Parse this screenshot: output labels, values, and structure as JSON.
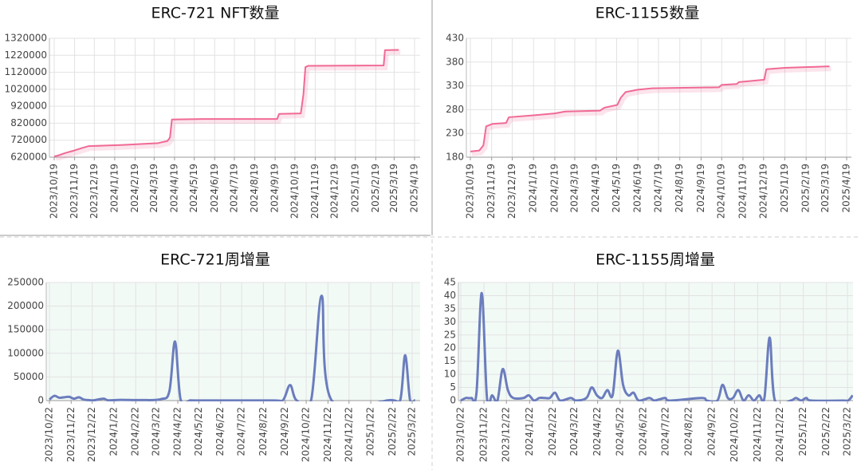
{
  "chart_data": [
    {
      "type": "line",
      "title": "ERC-721 NFT数量",
      "grid": true,
      "background": "#ffffff",
      "xlim": [
        "2023/10/19",
        "2025/4/19"
      ],
      "xticks": [
        "2023/10/19",
        "2023/11/19",
        "2023/12/19",
        "2024/1/19",
        "2024/2/19",
        "2024/3/19",
        "2024/4/19",
        "2024/5/19",
        "2024/6/19",
        "2024/7/19",
        "2024/8/19",
        "2024/9/19",
        "2024/10/19",
        "2024/11/19",
        "2024/12/19",
        "2025/1/19",
        "2025/2/19",
        "2025/3/19",
        "2025/4/19"
      ],
      "ylim": [
        620000,
        1320000
      ],
      "yticks": [
        620000,
        720000,
        820000,
        920000,
        1020000,
        1120000,
        1220000,
        1320000
      ],
      "x": [
        "2023/10/19",
        "2023/10/25",
        "2023/11/5",
        "2023/11/19",
        "2023/12/1",
        "2023/12/10",
        "2024/1/1",
        "2024/2/1",
        "2024/3/1",
        "2024/3/25",
        "2024/4/8",
        "2024/4/12",
        "2024/4/15",
        "2024/6/1",
        "2024/9/22",
        "2024/9/25",
        "2024/10/28",
        "2024/11/1",
        "2024/11/4",
        "2024/11/8",
        "2025/3/3",
        "2025/3/5",
        "2025/3/26"
      ],
      "series": [
        {
          "color": "#f06a95",
          "values": [
            625000,
            630000,
            645000,
            660000,
            675000,
            685000,
            688000,
            692000,
            698000,
            703000,
            715000,
            735000,
            842000,
            845000,
            845000,
            875000,
            878000,
            990000,
            1150000,
            1158000,
            1160000,
            1250000,
            1252000
          ]
        }
      ]
    },
    {
      "type": "line",
      "title": "ERC-1155数量",
      "grid": true,
      "background": "#ffffff",
      "xlim": [
        "2023/10/19",
        "2025/4/19"
      ],
      "xticks": [
        "2023/10/19",
        "2023/11/19",
        "2023/12/19",
        "2024/1/19",
        "2024/2/19",
        "2024/3/19",
        "2024/4/19",
        "2024/5/19",
        "2024/6/19",
        "2024/7/19",
        "2024/8/19",
        "2024/9/19",
        "2024/10/19",
        "2024/11/19",
        "2024/12/19",
        "2025/1/19",
        "2025/2/19",
        "2025/3/19",
        "2025/4/19"
      ],
      "ylim": [
        180,
        430
      ],
      "yticks": [
        180,
        230,
        280,
        330,
        380,
        430
      ],
      "x": [
        "2023/10/19",
        "2023/11/1",
        "2023/11/7",
        "2023/11/11",
        "2023/11/20",
        "2023/12/10",
        "2023/12/14",
        "2024/1/19",
        "2024/2/19",
        "2024/3/5",
        "2024/4/25",
        "2024/5/1",
        "2024/5/20",
        "2024/5/25",
        "2024/6/1",
        "2024/6/19",
        "2024/7/10",
        "2024/10/15",
        "2024/10/19",
        "2024/11/10",
        "2024/11/13",
        "2024/12/20",
        "2024/12/23",
        "2025/1/19",
        "2025/3/25"
      ],
      "series": [
        {
          "color": "#f06a95",
          "values": [
            192,
            194,
            205,
            245,
            250,
            252,
            264,
            268,
            272,
            276,
            278,
            284,
            290,
            305,
            317,
            322,
            325,
            327,
            332,
            334,
            338,
            343,
            365,
            368,
            371
          ]
        }
      ]
    },
    {
      "type": "line",
      "title": "ERC-721周增量",
      "grid": true,
      "smooth": true,
      "background": "#f2faf6",
      "xlim": [
        "2023/10/22",
        "2025/3/22"
      ],
      "xticks": [
        "2023/10/22",
        "2023/11/22",
        "2023/12/22",
        "2024/1/22",
        "2024/2/22",
        "2024/3/22",
        "2024/4/22",
        "2024/5/22",
        "2024/6/22",
        "2024/7/22",
        "2024/8/22",
        "2024/9/22",
        "2024/10/22",
        "2024/11/22",
        "2024/12/22",
        "2025/1/22",
        "2025/2/22",
        "2025/3/22"
      ],
      "ylim": [
        0,
        250000
      ],
      "yticks": [
        0,
        50000,
        100000,
        150000,
        200000,
        250000
      ],
      "x": [
        "2023/10/22",
        "2023/10/29",
        "2023/11/5",
        "2023/11/12",
        "2023/11/19",
        "2023/11/26",
        "2023/12/3",
        "2023/12/10",
        "2023/12/17",
        "2023/12/24",
        "2024/1/7",
        "2024/1/14",
        "2024/2/1",
        "2024/3/1",
        "2024/3/29",
        "2024/4/10",
        "2024/4/18",
        "2024/4/26",
        "2024/5/10",
        "2024/6/1",
        "2024/9/5",
        "2024/9/19",
        "2024/9/29",
        "2024/10/8",
        "2024/10/29",
        "2024/11/13",
        "2024/11/27",
        "2025/2/19",
        "2025/3/5",
        "2025/3/12",
        "2025/3/19",
        "2025/3/26"
      ],
      "series": [
        {
          "color": "#6b7dbd",
          "values": [
            2000,
            10000,
            6000,
            7000,
            8000,
            4000,
            7000,
            2000,
            1000,
            500,
            4000,
            500,
            1500,
            1000,
            3000,
            20000,
            125000,
            2000,
            500,
            300,
            300,
            1000,
            33000,
            1000,
            1000,
            222000,
            1000,
            1000,
            1000,
            96000,
            1000,
            1000
          ]
        }
      ]
    },
    {
      "type": "line",
      "title": "ERC-1155周增量",
      "grid": true,
      "smooth": true,
      "background": "#f2faf6",
      "xlim": [
        "2023/10/22",
        "2025/3/22"
      ],
      "xticks": [
        "2023/10/22",
        "2023/11/22",
        "2023/12/22",
        "2024/1/22",
        "2024/2/22",
        "2024/3/22",
        "2024/4/22",
        "2024/5/22",
        "2024/6/22",
        "2024/7/22",
        "2024/8/22",
        "2024/9/22",
        "2024/10/22",
        "2024/11/22",
        "2024/12/22",
        "2025/1/22",
        "2025/2/22",
        "2025/3/22"
      ],
      "ylim": [
        0,
        45
      ],
      "yticks": [
        0,
        5,
        10,
        15,
        20,
        25,
        30,
        35,
        40,
        45
      ],
      "x": [
        "2023/10/22",
        "2023/10/29",
        "2023/11/5",
        "2023/11/12",
        "2023/11/19",
        "2023/11/26",
        "2023/12/3",
        "2023/12/10",
        "2023/12/17",
        "2023/12/24",
        "2023/12/31",
        "2024/1/14",
        "2024/1/21",
        "2024/1/28",
        "2024/2/4",
        "2024/2/11",
        "2024/2/18",
        "2024/2/25",
        "2024/3/3",
        "2024/3/17",
        "2024/3/24",
        "2024/4/7",
        "2024/4/14",
        "2024/4/21",
        "2024/4/28",
        "2024/5/5",
        "2024/5/12",
        "2024/5/19",
        "2024/5/26",
        "2024/6/2",
        "2024/6/9",
        "2024/6/16",
        "2024/6/30",
        "2024/7/7",
        "2024/7/21",
        "2024/7/28",
        "2024/9/8",
        "2024/9/15",
        "2024/9/29",
        "2024/10/6",
        "2024/10/13",
        "2024/10/20",
        "2024/10/27",
        "2024/11/3",
        "2024/11/10",
        "2024/11/17",
        "2024/11/24",
        "2024/12/1",
        "2024/12/8",
        "2024/12/15",
        "2025/1/5",
        "2025/1/12",
        "2025/1/19",
        "2025/1/26",
        "2025/2/2",
        "2025/3/16",
        "2025/3/23",
        "2025/3/29"
      ],
      "series": [
        {
          "color": "#6b7dbd",
          "values": [
            0,
            1,
            1,
            3,
            41,
            1,
            2,
            0,
            12,
            4,
            1,
            1,
            2,
            0,
            1,
            1,
            1,
            3,
            0,
            1,
            0,
            1,
            5,
            2,
            1,
            4,
            2,
            19,
            6,
            2,
            3,
            0,
            1,
            0,
            1,
            0,
            1,
            0,
            0,
            6,
            1,
            1,
            4,
            0,
            2,
            0,
            2,
            1,
            24,
            0,
            0,
            1,
            0,
            1,
            0,
            0,
            0,
            2
          ]
        }
      ]
    }
  ]
}
